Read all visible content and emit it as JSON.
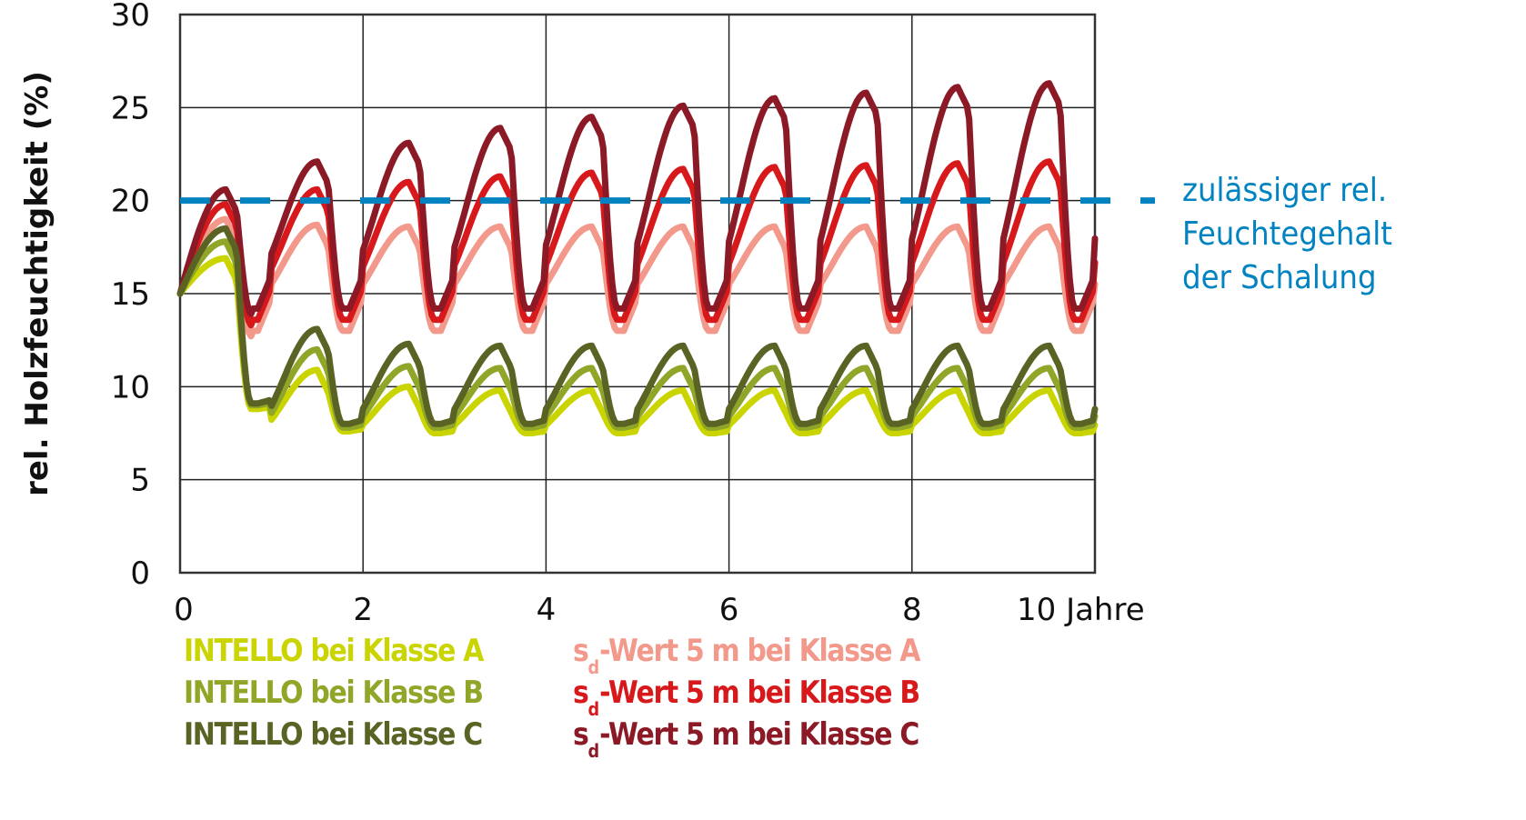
{
  "chart_data": {
    "type": "line",
    "title": "",
    "xlabel": "Jahre",
    "ylabel": "rel. Holzfeuchtigkeit (%)",
    "xlim": [
      0,
      10
    ],
    "ylim": [
      0,
      30
    ],
    "x_ticks": [
      "0",
      "2",
      "4",
      "6",
      "8",
      "10 Jahre"
    ],
    "y_ticks": [
      "0",
      "5",
      "10",
      "15",
      "20",
      "25",
      "30"
    ],
    "grid": true,
    "legend_position": "bottom",
    "reference_line": {
      "y": 20,
      "style": "dashed",
      "color": "#0083c0",
      "label": [
        "zulässiger rel.",
        "Feuchtegehalt",
        "der Schalung"
      ]
    },
    "series": [
      {
        "name": "INTELLO bei Klasse A",
        "color": "#cad400",
        "start": 15.0,
        "yearly_peaks": [
          16.9,
          10.9,
          10.0,
          9.8,
          9.8,
          9.8,
          9.8,
          9.8,
          9.8,
          9.8
        ],
        "yearly_troughs": [
          8.8,
          7.6,
          7.5,
          7.5,
          7.5,
          7.5,
          7.5,
          7.5,
          7.5,
          7.5
        ]
      },
      {
        "name": "INTELLO bei Klasse B",
        "color": "#8fa629",
        "start": 15.0,
        "yearly_peaks": [
          17.8,
          12.0,
          11.1,
          11.0,
          11.0,
          11.0,
          11.0,
          11.0,
          11.0,
          11.0
        ],
        "yearly_troughs": [
          9.0,
          7.8,
          7.8,
          7.8,
          7.8,
          7.8,
          7.8,
          7.8,
          7.8,
          7.8
        ]
      },
      {
        "name": "INTELLO bei Klasse C",
        "color": "#5a6324",
        "start": 15.0,
        "yearly_peaks": [
          18.5,
          13.1,
          12.3,
          12.2,
          12.2,
          12.2,
          12.2,
          12.2,
          12.2,
          12.2
        ],
        "yearly_troughs": [
          9.1,
          8.0,
          8.0,
          8.0,
          8.0,
          8.0,
          8.0,
          8.0,
          8.0,
          8.0
        ]
      },
      {
        "name": "sd-Wert 5 m bei Klasse A",
        "color": "#f3998c",
        "start": 15.0,
        "yearly_peaks": [
          19.0,
          18.7,
          18.6,
          18.6,
          18.6,
          18.6,
          18.6,
          18.6,
          18.6,
          18.6
        ],
        "yearly_troughs": [
          13.0,
          13.0,
          13.0,
          13.0,
          13.0,
          13.0,
          13.0,
          13.0,
          13.0,
          13.0
        ]
      },
      {
        "name": "sd-Wert 5 m bei Klasse B",
        "color": "#d7191c",
        "start": 15.0,
        "yearly_peaks": [
          19.8,
          20.6,
          21.0,
          21.3,
          21.5,
          21.7,
          21.8,
          21.9,
          22.0,
          22.1
        ],
        "yearly_troughs": [
          13.6,
          13.6,
          13.6,
          13.6,
          13.6,
          13.6,
          13.6,
          13.6,
          13.6,
          13.6
        ]
      },
      {
        "name": "sd-Wert 5 m bei Klasse C",
        "color": "#8b1a26",
        "start": 15.0,
        "yearly_peaks": [
          20.6,
          22.1,
          23.1,
          23.9,
          24.5,
          25.1,
          25.5,
          25.8,
          26.1,
          26.3
        ],
        "yearly_troughs": [
          14.2,
          14.2,
          14.2,
          14.2,
          14.2,
          14.2,
          14.2,
          14.2,
          14.2,
          14.2
        ]
      }
    ]
  },
  "legend": {
    "left": [
      {
        "text": "INTELLO bei Klasse A",
        "color": "#cad400"
      },
      {
        "text": "INTELLO bei Klasse B",
        "color": "#8fa629"
      },
      {
        "text": "INTELLO bei Klasse C",
        "color": "#5a6324"
      }
    ],
    "right": [
      {
        "prefix": "s",
        "sub": "d",
        "text": "-Wert 5 m bei Klasse A",
        "color": "#f3998c"
      },
      {
        "prefix": "s",
        "sub": "d",
        "text": "-Wert 5 m bei Klasse B",
        "color": "#d7191c"
      },
      {
        "prefix": "s",
        "sub": "d",
        "text": "-Wert 5 m bei Klasse C",
        "color": "#8b1a26"
      }
    ]
  },
  "annotation": {
    "line1": "zulässiger rel.",
    "line2": "Feuchtegehalt",
    "line3": "der Schalung"
  }
}
